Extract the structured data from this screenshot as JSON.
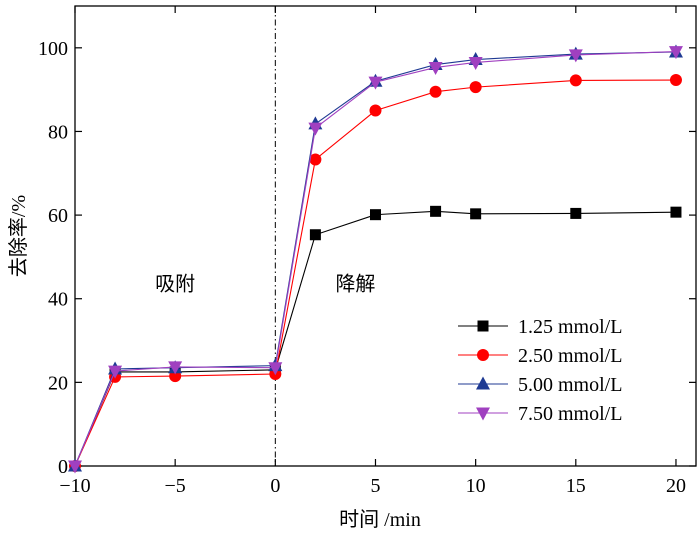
{
  "chart_data": {
    "type": "line",
    "title": "",
    "xlabel": "时间 /min",
    "ylabel": "去除率/%",
    "xlim": [
      -10,
      21
    ],
    "ylim": [
      0,
      110
    ],
    "xticks": [
      -10,
      -5,
      0,
      5,
      10,
      15,
      20
    ],
    "yticks": [
      0,
      20,
      40,
      60,
      80,
      100
    ],
    "xtick_labels": [
      "−10",
      "−5",
      "0",
      "5",
      "10",
      "15",
      "20"
    ],
    "ytick_labels": [
      "0",
      "20",
      "40",
      "60",
      "80",
      "100"
    ],
    "divider_x": 0,
    "annotations": [
      {
        "text": "吸附",
        "x": -5,
        "y": 42
      },
      {
        "text": "降解",
        "x": 4,
        "y": 42
      }
    ],
    "legend_position": "bottom-right",
    "series": [
      {
        "name": "1.25 mmol/L",
        "color": "#000000",
        "marker": "square",
        "x": [
          -10,
          -8,
          -5,
          0,
          2,
          5,
          8,
          10,
          15,
          20
        ],
        "y": [
          0,
          22.5,
          22.5,
          23,
          55.3,
          60.1,
          60.9,
          60.3,
          60.4,
          60.7
        ]
      },
      {
        "name": "2.50 mmol/L",
        "color": "#ff0000",
        "marker": "circle",
        "x": [
          -10,
          -8,
          -5,
          0,
          2,
          5,
          8,
          10,
          15,
          20
        ],
        "y": [
          0,
          21.3,
          21.5,
          22,
          73.3,
          85,
          89.5,
          90.6,
          92.2,
          92.3
        ]
      },
      {
        "name": "5.00 mmol/L",
        "color": "#1f3a93",
        "marker": "triangle-up",
        "x": [
          -10,
          -8,
          -5,
          0,
          2,
          5,
          8,
          10,
          15,
          20
        ],
        "y": [
          0,
          23.2,
          23.5,
          24,
          81.8,
          92,
          96,
          97.2,
          98.5,
          99
        ]
      },
      {
        "name": "7.50 mmol/L",
        "color": "#a040c0",
        "marker": "triangle-down",
        "x": [
          -10,
          -8,
          -5,
          0,
          2,
          5,
          8,
          10,
          15,
          20
        ],
        "y": [
          0,
          22.7,
          23.7,
          23.5,
          80.8,
          91.8,
          95.3,
          96.5,
          98.3,
          99.1
        ]
      }
    ]
  }
}
